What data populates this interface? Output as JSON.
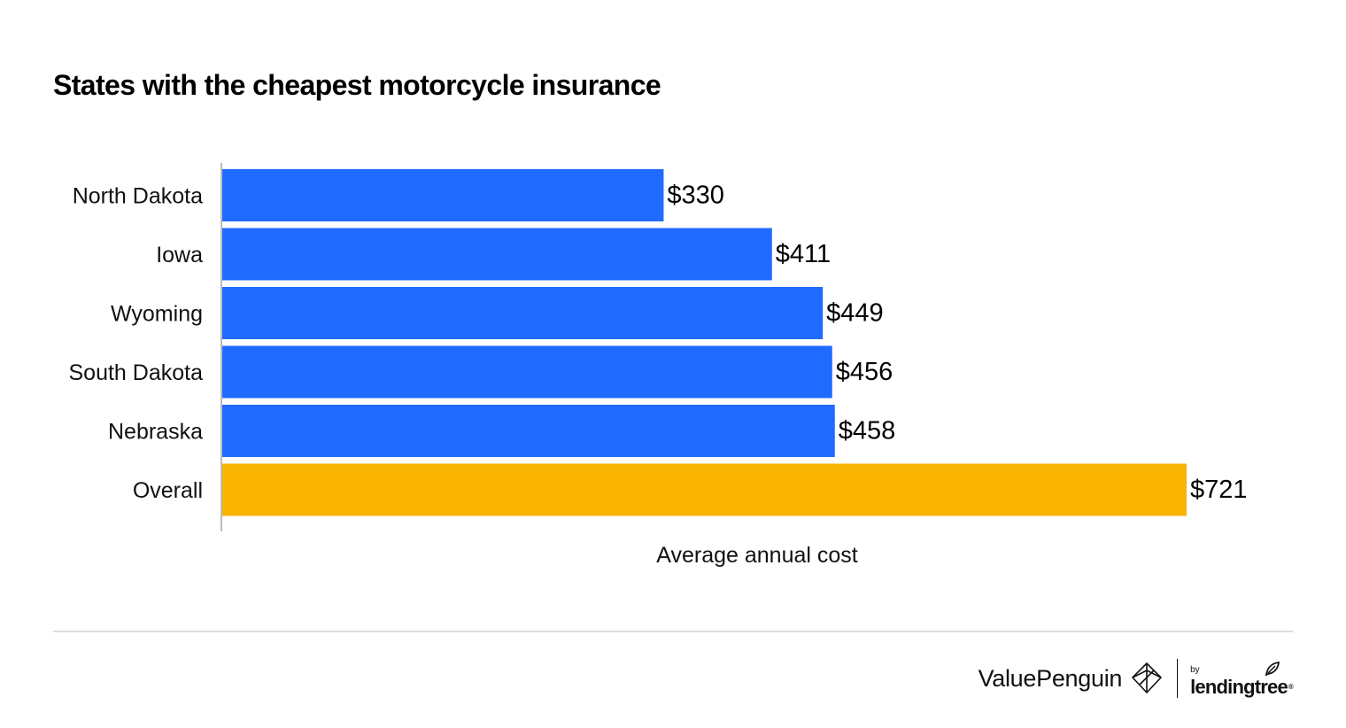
{
  "title": "States with the cheapest motorcycle insurance",
  "colors": {
    "states": "#1f6bff",
    "overall": "#f8b400",
    "axis": "#bbbbbb",
    "text": "#111111"
  },
  "chart_data": {
    "type": "bar",
    "orientation": "horizontal",
    "title": "States with the cheapest motorcycle insurance",
    "xlabel": "Average annual cost",
    "ylabel": "",
    "xlim": [
      0,
      721
    ],
    "grid": false,
    "categories": [
      "North Dakota",
      "Iowa",
      "Wyoming",
      "South Dakota",
      "Nebraska",
      "Overall"
    ],
    "values": [
      330,
      411,
      449,
      456,
      458,
      721
    ],
    "value_labels": [
      "$330",
      "$411",
      "$449",
      "$456",
      "$458",
      "$721"
    ],
    "highlight": "Overall"
  },
  "footer": {
    "brand": "ValuePenguin",
    "brand_icon": "valuepenguin-logo-icon",
    "partner_prefix": "by",
    "partner": "lendingtree",
    "trademark": "®"
  }
}
